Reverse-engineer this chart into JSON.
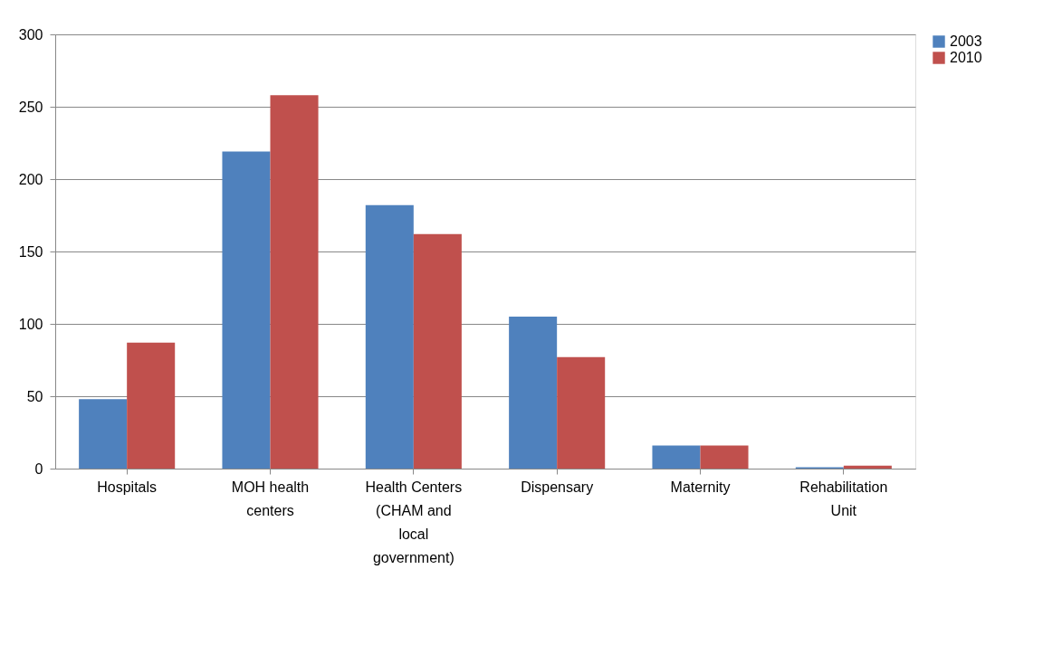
{
  "chart_data": {
    "type": "bar",
    "categories": [
      "Hospitals",
      "MOH health centers",
      "Health Centers (CHAM and local government)",
      "Dispensary",
      "Maternity",
      "Rehabilitation Unit"
    ],
    "series": [
      {
        "name": "2003",
        "color": "#4f81bd",
        "values": [
          48,
          219,
          182,
          105,
          16,
          1
        ]
      },
      {
        "name": "2010",
        "color": "#c0504d",
        "values": [
          87,
          258,
          162,
          77,
          16,
          2
        ]
      }
    ],
    "ylim": [
      0,
      300
    ],
    "yticks": [
      0,
      50,
      100,
      150,
      200,
      250,
      300
    ],
    "grid": "y",
    "legend": "right"
  }
}
